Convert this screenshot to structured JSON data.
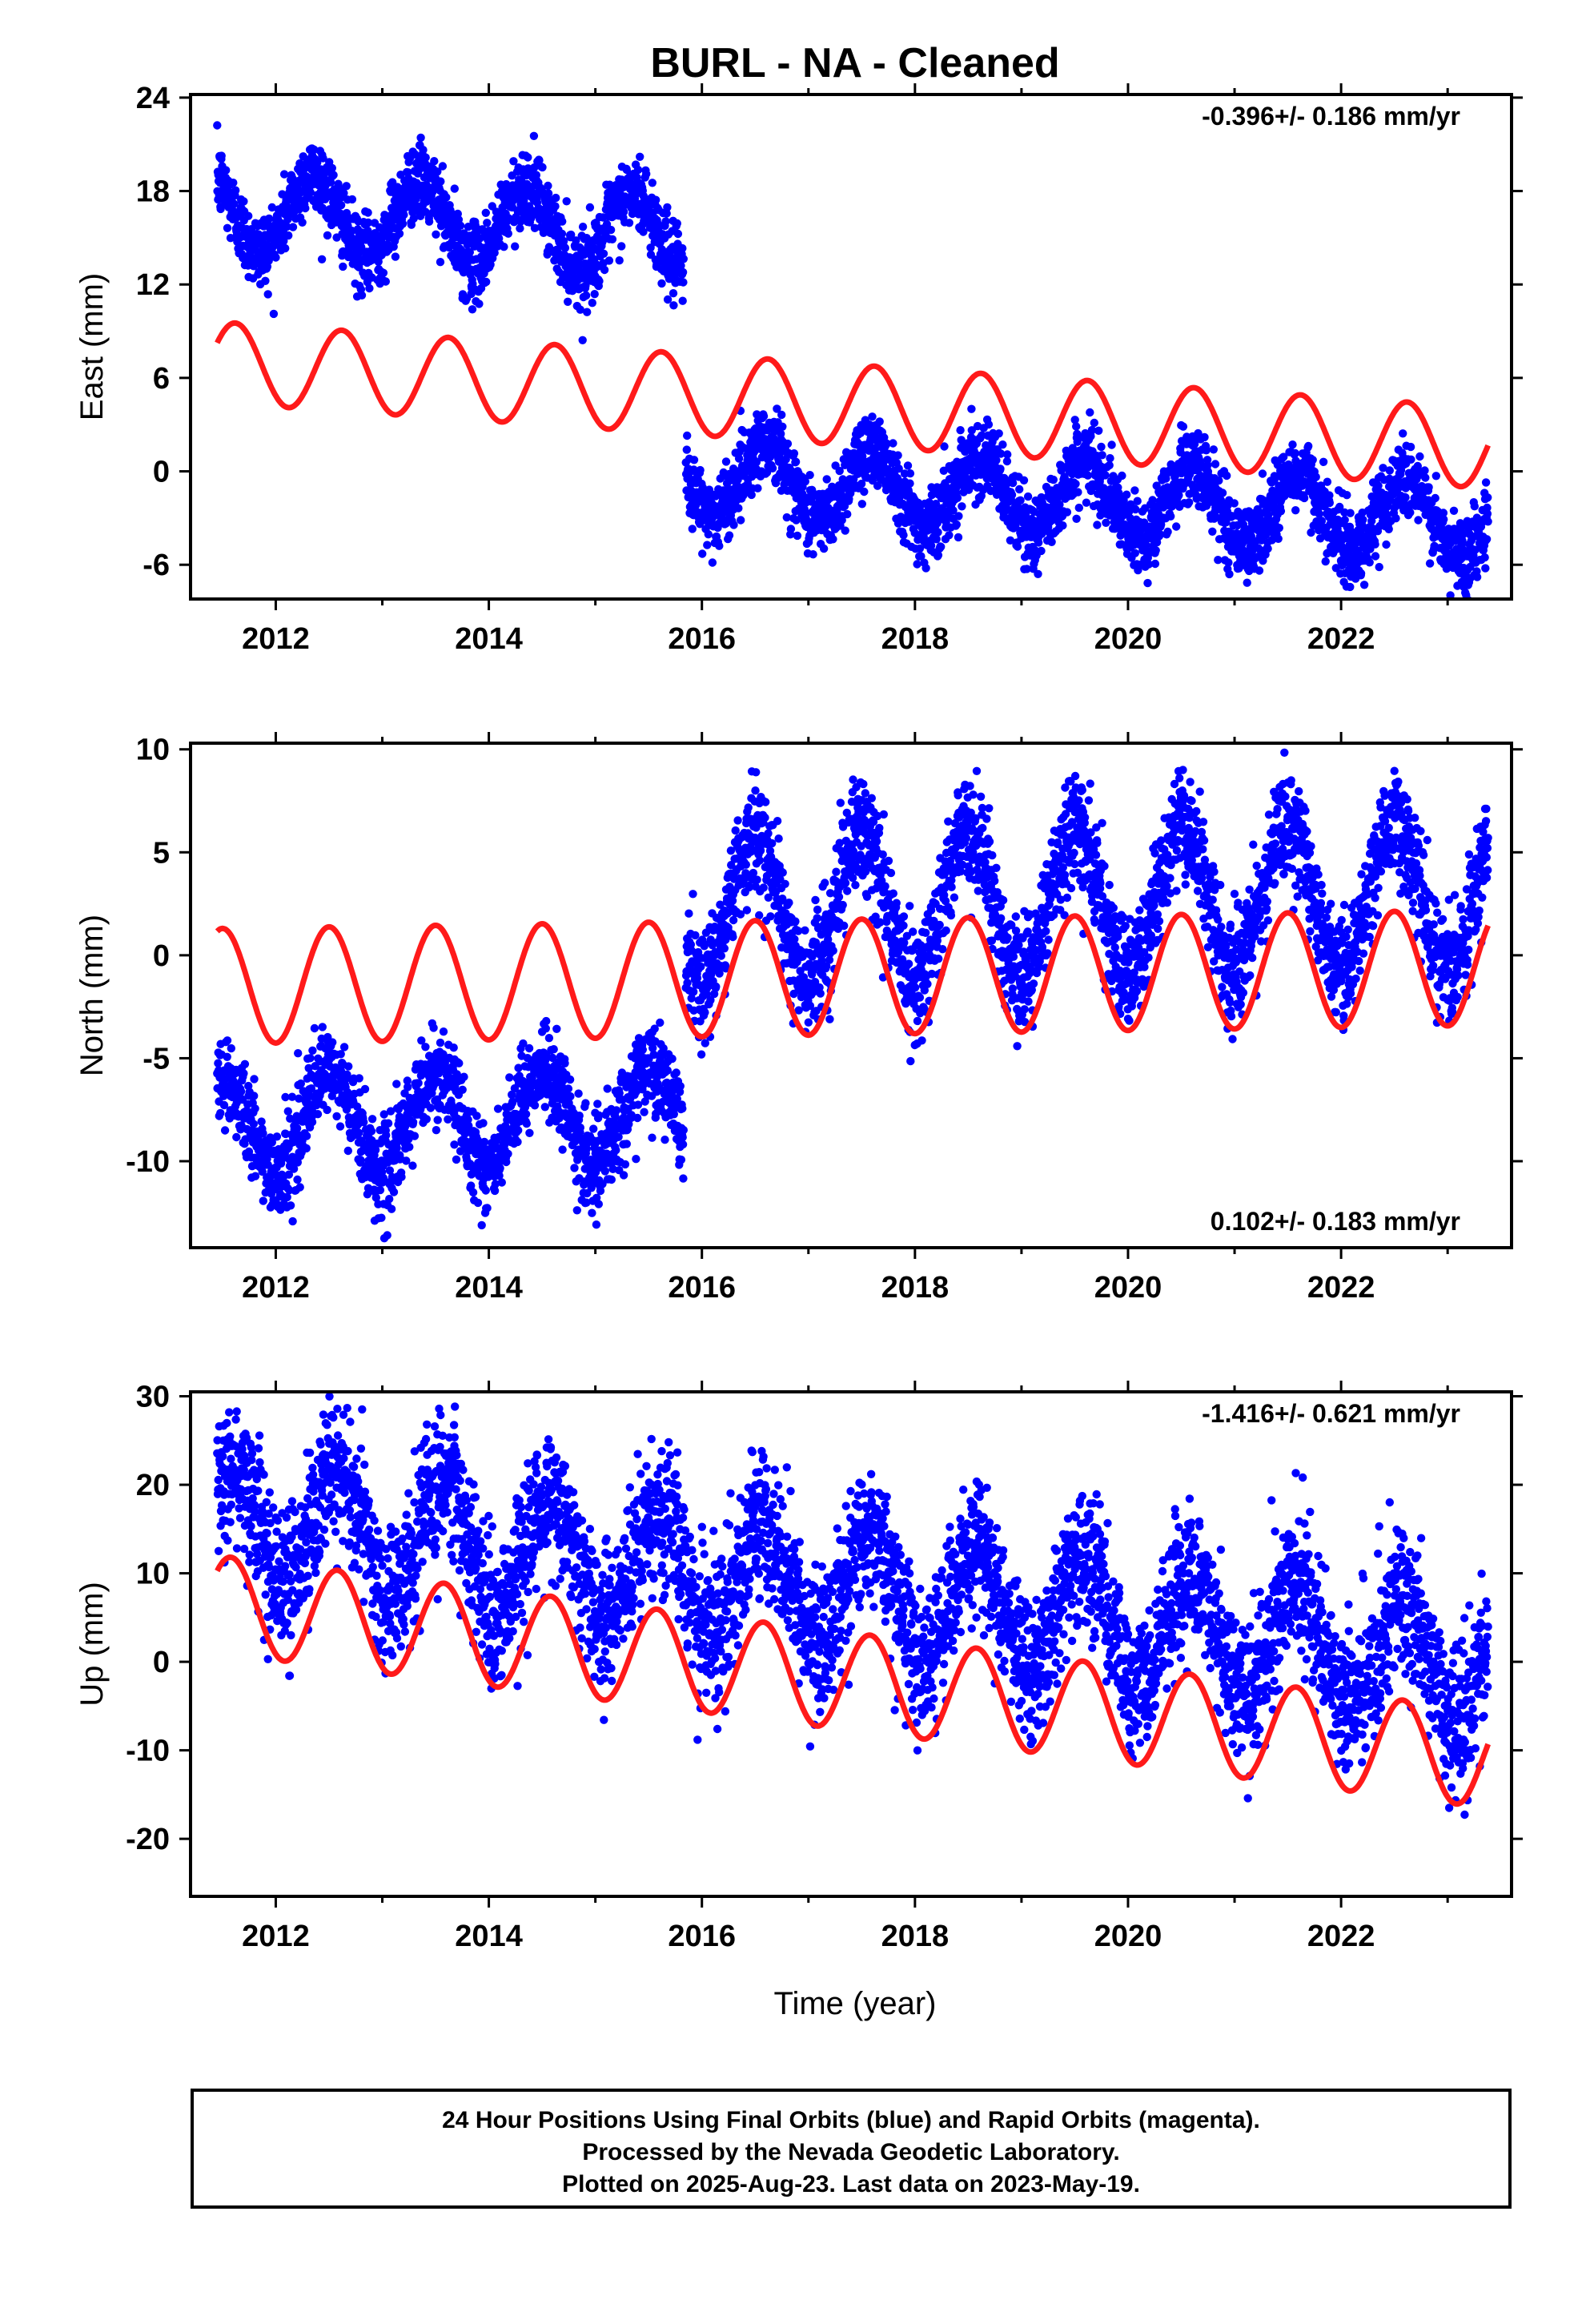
{
  "title": "BURL  - NA - Cleaned",
  "xlabel": "Time (year)",
  "colors": {
    "data": "#0000ff",
    "model": "#ff1a1a",
    "frame": "#000000"
  },
  "caption": [
    "24 Hour Positions Using Final Orbits (blue) and Rapid Orbits (magenta).",
    "Processed by the Nevada Geodetic Laboratory.",
    "Plotted on 2025-Aug-23. Last data on 2023-May-19."
  ],
  "chart_data": [
    {
      "type": "scatter",
      "component": "east",
      "ylabel": "East (mm)",
      "rate_label": "-0.396+/- 0.186 mm/yr",
      "rate_position": "top-right",
      "xlim": [
        2011.2,
        2023.6
      ],
      "ylim": [
        -8.2,
        24.2
      ],
      "xticks": [
        2012,
        2014,
        2016,
        2018,
        2020,
        2022
      ],
      "yticks": [
        -6,
        0,
        6,
        12,
        18,
        24
      ],
      "segments": [
        {
          "t0": 2011.45,
          "t1": 2015.83,
          "offset": 16.0,
          "amp": 2.5,
          "phase": 0.35,
          "noise": 1.2
        },
        {
          "t0": 2015.85,
          "t1": 2023.38,
          "offset": -1.7,
          "amp": 2.4,
          "phase": 0.6,
          "noise": 1.2
        }
      ],
      "trend_mm_per_yr": -0.396,
      "model": {
        "t0": 2011.45,
        "t1": 2023.38,
        "start": 7.0,
        "end": 1.5,
        "amp": 2.6,
        "phase": 0.62
      }
    },
    {
      "type": "scatter",
      "component": "north",
      "ylabel": "North (mm)",
      "rate_label": "0.102+/- 0.183 mm/yr",
      "rate_position": "bottom-right",
      "xlim": [
        2011.2,
        2023.6
      ],
      "ylim": [
        -14.2,
        10.3
      ],
      "xticks": [
        2012,
        2014,
        2016,
        2018,
        2020,
        2022
      ],
      "yticks": [
        -10,
        -5,
        0,
        5,
        10
      ],
      "segments": [
        {
          "t0": 2011.45,
          "t1": 2015.83,
          "offset": -8.0,
          "amp": 2.3,
          "phase": 0.5,
          "noise": 1.1
        },
        {
          "t0": 2015.85,
          "t1": 2023.38,
          "offset": 2.6,
          "amp": 3.6,
          "phase": 0.5,
          "noise": 1.3
        }
      ],
      "trend_mm_per_yr": 0.102,
      "model": {
        "t0": 2011.45,
        "t1": 2023.38,
        "start": -1.5,
        "end": -0.6,
        "amp": 2.8,
        "phase": 0.5
      }
    },
    {
      "type": "scatter",
      "component": "up",
      "ylabel": "Up (mm)",
      "rate_label": "-1.416+/- 0.621 mm/yr",
      "rate_position": "top-right",
      "xlim": [
        2011.2,
        2023.6
      ],
      "ylim": [
        -26.5,
        30.5
      ],
      "xticks": [
        2012,
        2014,
        2016,
        2018,
        2020,
        2022
      ],
      "yticks": [
        -20,
        -10,
        0,
        10,
        20,
        30
      ],
      "segments": [
        {
          "t0": 2011.45,
          "t1": 2023.38,
          "offset": 8.0,
          "amp": 6.5,
          "phase": 0.58,
          "noise": 4.0
        }
      ],
      "trend_mm_per_yr": -1.416,
      "model": {
        "t0": 2011.45,
        "t1": 2023.38,
        "start": 6.5,
        "end": -11.0,
        "amp": 5.5,
        "phase": 0.58
      }
    }
  ]
}
